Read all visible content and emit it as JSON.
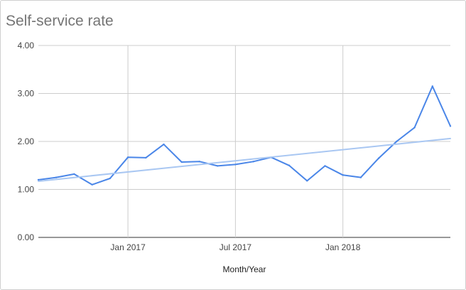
{
  "chart_data": {
    "type": "line",
    "title": "Self-service rate",
    "xlabel": "Month/Year",
    "ylabel": "",
    "ylim": [
      0,
      4
    ],
    "yticks": [
      "0.00",
      "1.00",
      "2.00",
      "3.00",
      "4.00"
    ],
    "x_range": [
      "2016-08",
      "2018-07"
    ],
    "xticks": [
      {
        "label": "Jan 2017",
        "month": "2017-01"
      },
      {
        "label": "Jul 2017",
        "month": "2017-07"
      },
      {
        "label": "Jan 2018",
        "month": "2018-01"
      }
    ],
    "grid": true,
    "series": [
      {
        "type": "line",
        "color": "#4a86e8",
        "x": [
          "2016-08",
          "2016-09",
          "2016-10",
          "2016-11",
          "2016-12",
          "2017-01",
          "2017-02",
          "2017-03",
          "2017-04",
          "2017-05",
          "2017-06",
          "2017-07",
          "2017-08",
          "2017-09",
          "2017-10",
          "2017-11",
          "2017-12",
          "2018-01",
          "2018-02",
          "2018-03",
          "2018-04",
          "2018-05",
          "2018-06",
          "2018-07"
        ],
        "values": [
          1.2,
          1.25,
          1.32,
          1.1,
          1.23,
          1.67,
          1.66,
          1.94,
          1.57,
          1.58,
          1.49,
          1.52,
          1.58,
          1.67,
          1.5,
          1.18,
          1.49,
          1.3,
          1.25,
          1.65,
          2.0,
          2.29,
          3.15,
          2.32
        ]
      },
      {
        "type": "trendline",
        "color": "#a9c7f2",
        "x": [
          "2016-08",
          "2018-07"
        ],
        "values": [
          1.17,
          2.06
        ]
      }
    ]
  }
}
